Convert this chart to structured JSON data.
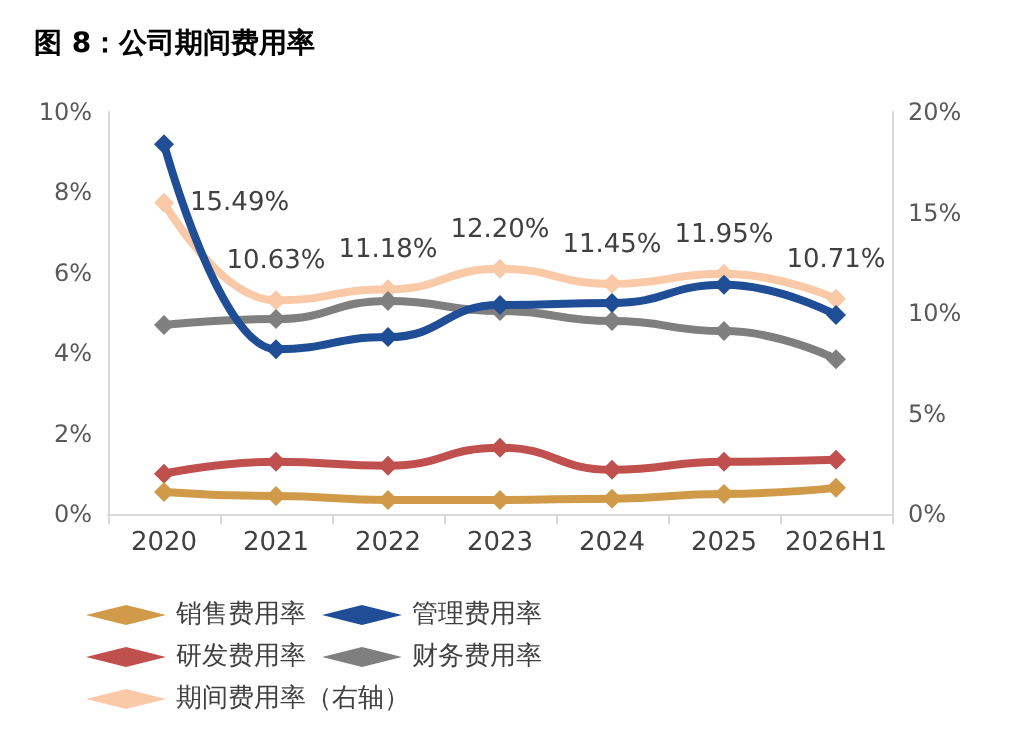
{
  "chart_data": {
    "type": "line",
    "title": "图 8：公司期间费用率",
    "categories": [
      "2020",
      "2021",
      "2022",
      "2023",
      "2024",
      "2025",
      "2026H1"
    ],
    "series": [
      {
        "name": "销售费用率",
        "color": "#d09a48",
        "values": [
          0.55,
          0.45,
          0.35,
          0.35,
          0.38,
          0.5,
          0.65
        ]
      },
      {
        "name": "管理费用率",
        "color": "#1f4e97",
        "values": [
          9.2,
          4.1,
          4.4,
          5.2,
          5.25,
          5.7,
          4.95
        ]
      },
      {
        "name": "研发费用率",
        "color": "#c0504d",
        "values": [
          1.0,
          1.3,
          1.2,
          1.65,
          1.1,
          1.3,
          1.35
        ]
      },
      {
        "name": "财务费用率",
        "color": "#7f7f7f",
        "values": [
          4.7,
          4.85,
          5.3,
          5.05,
          4.8,
          4.55,
          3.85
        ]
      },
      {
        "name": "期间费用率（右轴）",
        "color": "#f9c9a8",
        "axis": "y2",
        "values": [
          15.49,
          10.63,
          11.18,
          12.2,
          11.45,
          11.95,
          10.71
        ],
        "value_labels": [
          "15.49%",
          "10.63%",
          "11.18%",
          "12.20%",
          "11.45%",
          "11.95%",
          "10.71%"
        ]
      }
    ],
    "ylim": [
      0,
      10
    ],
    "yticks": [
      {
        "value": 0,
        "label": "0%"
      },
      {
        "value": 2,
        "label": "2%"
      },
      {
        "value": 4,
        "label": "4%"
      },
      {
        "value": 6,
        "label": "6%"
      },
      {
        "value": 8,
        "label": "8%"
      },
      {
        "value": 10,
        "label": "10%"
      }
    ],
    "y2lim": [
      0,
      20
    ],
    "y2ticks": [
      {
        "value": 0,
        "label": "0%"
      },
      {
        "value": 5,
        "label": "5%"
      },
      {
        "value": 10,
        "label": "10%"
      },
      {
        "value": 15,
        "label": "15%"
      },
      {
        "value": 20,
        "label": "20%"
      }
    ],
    "grid": false,
    "legend": "bottom",
    "marker": "diamond",
    "line_style": "solid"
  }
}
